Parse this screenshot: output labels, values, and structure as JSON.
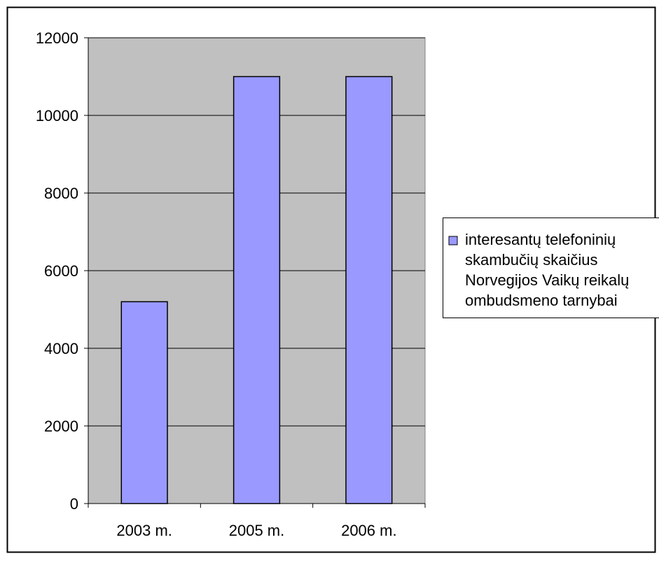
{
  "chart_data": {
    "type": "bar",
    "categories": [
      "2003 m.",
      "2005 m.",
      "2006 m."
    ],
    "series": [
      {
        "name": "interesantų telefoninių skambučių skaičius Norvegijos Vaikų reikalų ombudsmeno tarnybai",
        "values": [
          5200,
          11000,
          11000
        ],
        "color": "#9999ff"
      }
    ],
    "yticks": [
      "0",
      "2000",
      "4000",
      "6000",
      "8000",
      "10000",
      "12000"
    ],
    "ylim": [
      0,
      12000
    ],
    "grid": true,
    "legend_position": "right",
    "legend_lines": [
      "interesantų telefoninių",
      "skambučių skaičius",
      "Norvegijos Vaikų reikalų",
      "ombudsmeno tarnybai"
    ],
    "colors": {
      "plot_background": "#c0c0c0",
      "bar_fill": "#9999ff",
      "bar_stroke": "#000000",
      "gridline": "#000000"
    }
  }
}
